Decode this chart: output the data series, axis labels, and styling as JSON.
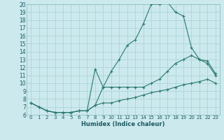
{
  "xlabel": "Humidex (Indice chaleur)",
  "bg_color": "#cce9ee",
  "grid_color": "#aad4da",
  "line_color": "#2a7a6e",
  "xlim": [
    -0.5,
    23.5
  ],
  "ylim": [
    6,
    20
  ],
  "yticks": [
    6,
    7,
    8,
    9,
    10,
    11,
    12,
    13,
    14,
    15,
    16,
    17,
    18,
    19,
    20
  ],
  "xticks": [
    0,
    1,
    2,
    3,
    4,
    5,
    6,
    7,
    8,
    9,
    10,
    11,
    12,
    13,
    14,
    15,
    16,
    17,
    18,
    19,
    20,
    21,
    22,
    23
  ],
  "line_top_x": [
    0,
    1,
    2,
    3,
    4,
    5,
    6,
    7,
    8,
    9,
    10,
    11,
    12,
    13,
    14,
    15,
    16,
    17,
    18,
    19,
    20,
    21,
    22,
    23
  ],
  "line_top_y": [
    7.5,
    7.0,
    6.5,
    6.3,
    6.3,
    6.3,
    6.5,
    6.5,
    7.2,
    9.5,
    11.5,
    13.0,
    14.8,
    15.5,
    17.5,
    20.0,
    20.0,
    20.3,
    19.0,
    18.5,
    14.5,
    13.0,
    12.5,
    11.0
  ],
  "line_mid_x": [
    0,
    1,
    2,
    3,
    4,
    5,
    6,
    7,
    8,
    9,
    10,
    11,
    12,
    13,
    14,
    15,
    16,
    17,
    18,
    19,
    20,
    21,
    22,
    23
  ],
  "line_mid_y": [
    7.5,
    7.0,
    6.5,
    6.3,
    6.3,
    6.3,
    6.5,
    6.5,
    11.8,
    9.5,
    9.5,
    9.5,
    9.5,
    9.5,
    9.5,
    10.0,
    10.5,
    11.5,
    12.5,
    13.0,
    13.5,
    13.0,
    12.8,
    11.2
  ],
  "line_bot_x": [
    0,
    1,
    2,
    3,
    4,
    5,
    6,
    7,
    8,
    9,
    10,
    11,
    12,
    13,
    14,
    15,
    16,
    17,
    18,
    19,
    20,
    21,
    22,
    23
  ],
  "line_bot_y": [
    7.5,
    7.0,
    6.5,
    6.3,
    6.3,
    6.3,
    6.5,
    6.5,
    7.2,
    7.5,
    7.5,
    7.8,
    8.0,
    8.2,
    8.5,
    8.8,
    9.0,
    9.2,
    9.5,
    9.8,
    10.0,
    10.2,
    10.5,
    10.0
  ]
}
